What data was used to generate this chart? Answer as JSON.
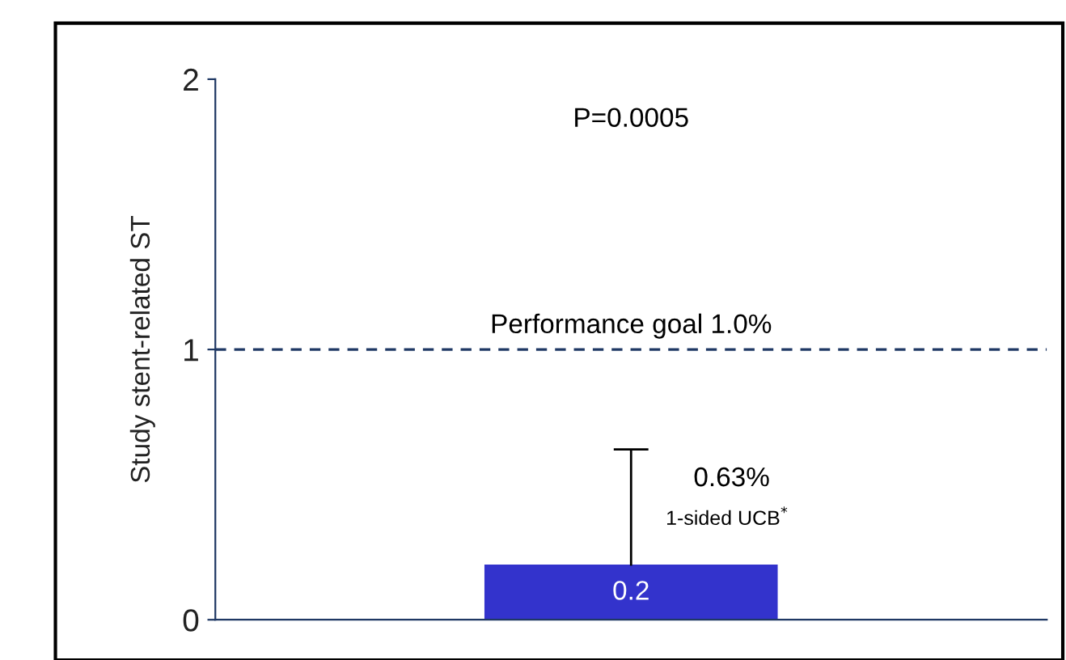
{
  "chart_data": {
    "type": "bar",
    "ylabel": "Study stent-related ST",
    "categories": [
      null
    ],
    "values": [
      0.2
    ],
    "color": "#3333cc",
    "errors": [
      [
        0.2,
        0.63
      ]
    ],
    "data_labels": true,
    "ylim": [
      0,
      2
    ],
    "yticks": [
      0,
      1,
      2
    ],
    "grid": false,
    "tick_labels": "y",
    "ref_lines": [
      {
        "axis": "y",
        "value": 1,
        "label": "Performance goal 1.0%",
        "color": "#1f3864",
        "line_style": "dashed"
      }
    ],
    "annotations": [
      "P=0.0005",
      "0.63%",
      "1-sided UCB$^{*}$"
    ]
  }
}
